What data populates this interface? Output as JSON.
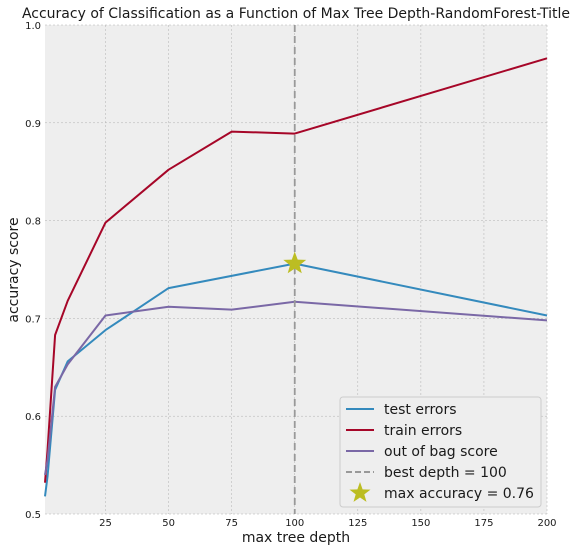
{
  "chart_data": {
    "type": "line",
    "title": "Accuracy of Classification as a Function of Max Tree Depth-RandomForest-Title",
    "xlabel": "max tree depth",
    "ylabel": "accuracy score",
    "xlim": [
      1,
      200
    ],
    "ylim": [
      0.5,
      1.0
    ],
    "xticks": [
      25,
      50,
      75,
      100,
      125,
      150,
      175,
      200
    ],
    "yticks": [
      0.5,
      0.6,
      0.7,
      0.8,
      0.9,
      1.0
    ],
    "xtick_labels": [
      "25",
      "50",
      "75",
      "100",
      "125",
      "150",
      "175",
      "200"
    ],
    "ytick_labels": [
      "0.5",
      "0.6",
      "0.7",
      "0.8",
      "0.9",
      "1.0"
    ],
    "grid": true,
    "legend_position": "lower-right",
    "series": [
      {
        "name": "test errors",
        "color": "#348abd",
        "x": [
          1,
          2,
          5,
          10,
          25,
          50,
          100,
          200
        ],
        "y": [
          0.518,
          0.538,
          0.627,
          0.656,
          0.688,
          0.731,
          0.756,
          0.703
        ]
      },
      {
        "name": "train errors",
        "color": "#a60628",
        "x": [
          1,
          2,
          5,
          10,
          25,
          50,
          75,
          100,
          200
        ],
        "y": [
          0.532,
          0.565,
          0.683,
          0.718,
          0.798,
          0.852,
          0.891,
          0.889,
          0.966
        ]
      },
      {
        "name": "out of bag score",
        "color": "#7a68a6",
        "x": [
          1,
          2,
          5,
          10,
          25,
          50,
          75,
          100,
          200
        ],
        "y": [
          0.54,
          0.555,
          0.63,
          0.653,
          0.703,
          0.712,
          0.709,
          0.717,
          0.698
        ]
      }
    ],
    "reference_line": {
      "name": "best depth = 100",
      "x": 100,
      "color": "#999999",
      "style": "dashed"
    },
    "marker": {
      "name": "max accuracy = 0.76",
      "x": 100,
      "y": 0.756,
      "color": "#bcbd22",
      "shape": "star"
    }
  }
}
